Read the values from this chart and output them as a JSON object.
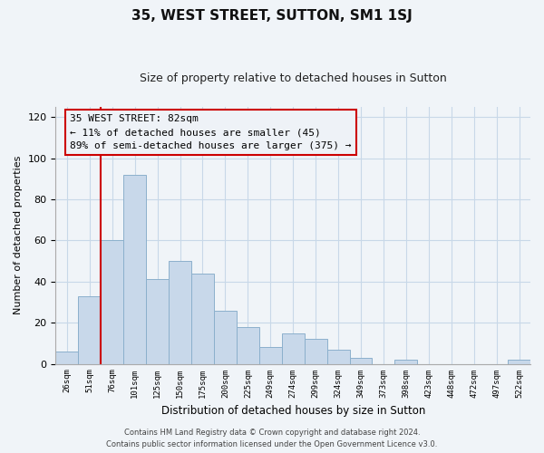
{
  "title": "35, WEST STREET, SUTTON, SM1 1SJ",
  "subtitle": "Size of property relative to detached houses in Sutton",
  "xlabel": "Distribution of detached houses by size in Sutton",
  "ylabel": "Number of detached properties",
  "bar_labels": [
    "26sqm",
    "51sqm",
    "76sqm",
    "101sqm",
    "125sqm",
    "150sqm",
    "175sqm",
    "200sqm",
    "225sqm",
    "249sqm",
    "274sqm",
    "299sqm",
    "324sqm",
    "349sqm",
    "373sqm",
    "398sqm",
    "423sqm",
    "448sqm",
    "472sqm",
    "497sqm",
    "522sqm"
  ],
  "bar_values": [
    6,
    33,
    60,
    92,
    41,
    50,
    44,
    26,
    18,
    8,
    15,
    12,
    7,
    3,
    0,
    2,
    0,
    0,
    0,
    0,
    2
  ],
  "bar_color": "#c8d8ea",
  "bar_edge_color": "#8cb0cc",
  "vline_color": "#cc0000",
  "ylim": [
    0,
    125
  ],
  "yticks": [
    0,
    20,
    40,
    60,
    80,
    100,
    120
  ],
  "annotation_title": "35 WEST STREET: 82sqm",
  "annotation_line1": "← 11% of detached houses are smaller (45)",
  "annotation_line2": "89% of semi-detached houses are larger (375) →",
  "footer_line1": "Contains HM Land Registry data © Crown copyright and database right 2024.",
  "footer_line2": "Contains public sector information licensed under the Open Government Licence v3.0.",
  "background_color": "#f0f4f8",
  "grid_color": "#c8d8e8",
  "ann_box_color": "#eef2f7"
}
